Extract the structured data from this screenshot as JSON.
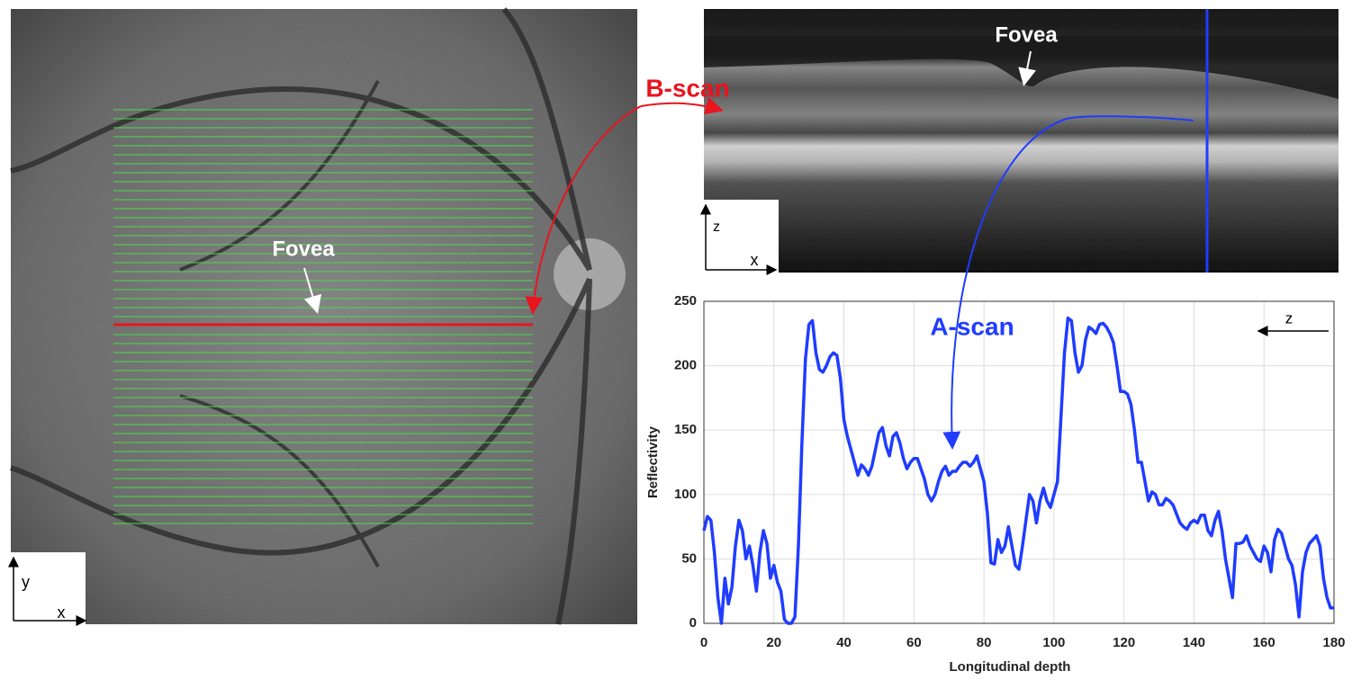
{
  "fundus": {
    "fovea_label": "Fovea",
    "axis_x": "x",
    "axis_y": "y"
  },
  "bscan": {
    "title": "B-scan",
    "fovea_label": "Fovea",
    "axis_x": "x",
    "axis_z": "z"
  },
  "chart_data": {
    "type": "line",
    "annotation": "A-scan",
    "direction_label": "z",
    "x_label": "Longitudinal depth",
    "y_label": "Reflectivity",
    "color": "#1f3cff",
    "grid": true,
    "xlim": [
      0,
      180
    ],
    "xticks": [
      0,
      20,
      40,
      60,
      80,
      100,
      120,
      140,
      160,
      180
    ],
    "ylim": [
      0,
      250
    ],
    "yticks": [
      0,
      50,
      100,
      150,
      200,
      250
    ],
    "x": [
      0,
      1,
      2,
      3,
      4,
      5,
      6,
      7,
      8,
      9,
      10,
      11,
      12,
      13,
      14,
      15,
      16,
      17,
      18,
      19,
      20,
      21,
      22,
      23,
      24,
      25,
      26,
      27,
      28,
      29,
      30,
      31,
      32,
      33,
      34,
      35,
      36,
      37,
      38,
      39,
      40,
      41,
      42,
      43,
      44,
      45,
      46,
      47,
      48,
      49,
      50,
      51,
      52,
      53,
      54,
      55,
      56,
      57,
      58,
      59,
      60,
      61,
      62,
      63,
      64,
      65,
      66,
      67,
      68,
      69,
      70,
      71,
      72,
      73,
      74,
      75,
      76,
      77,
      78,
      79,
      80,
      81,
      82,
      83,
      84,
      85,
      86,
      87,
      88,
      89,
      90,
      91,
      92,
      93,
      94,
      95,
      96,
      97,
      98,
      99,
      100,
      101,
      102,
      103,
      104,
      105,
      106,
      107,
      108,
      109,
      110,
      111,
      112,
      113,
      114,
      115,
      116,
      117,
      118,
      119,
      120,
      121,
      122,
      123,
      124,
      125,
      126,
      127,
      128,
      129,
      130,
      131,
      132,
      133,
      134,
      135,
      136,
      137,
      138,
      139,
      140,
      141,
      142,
      143,
      144,
      145,
      146,
      147,
      148,
      149,
      150,
      151,
      152,
      153,
      154,
      155,
      156,
      157,
      158,
      159,
      160,
      161,
      162,
      163,
      164,
      165,
      166,
      167,
      168,
      169,
      170,
      171,
      172,
      173,
      174,
      175,
      176,
      177,
      178,
      179,
      180
    ],
    "values": [
      72,
      83,
      80,
      55,
      20,
      0,
      35,
      15,
      28,
      60,
      80,
      72,
      50,
      60,
      45,
      25,
      55,
      72,
      62,
      35,
      45,
      32,
      25,
      3,
      0,
      0,
      5,
      60,
      140,
      205,
      232,
      235,
      210,
      197,
      195,
      200,
      207,
      210,
      208,
      190,
      158,
      145,
      135,
      125,
      115,
      123,
      120,
      115,
      122,
      135,
      148,
      152,
      138,
      130,
      145,
      148,
      140,
      128,
      120,
      125,
      128,
      128,
      120,
      112,
      100,
      95,
      100,
      110,
      118,
      122,
      115,
      118,
      118,
      122,
      125,
      125,
      122,
      125,
      130,
      120,
      110,
      85,
      47,
      46,
      65,
      55,
      60,
      75,
      60,
      45,
      42,
      60,
      80,
      100,
      95,
      78,
      95,
      105,
      95,
      90,
      100,
      110,
      160,
      210,
      237,
      235,
      210,
      195,
      200,
      220,
      230,
      228,
      225,
      232,
      233,
      230,
      225,
      218,
      200,
      180,
      180,
      178,
      170,
      150,
      125,
      125,
      110,
      95,
      102,
      100,
      92,
      92,
      97,
      95,
      92,
      85,
      78,
      75,
      73,
      78,
      80,
      78,
      84,
      84,
      72,
      68,
      80,
      87,
      72,
      50,
      35,
      20,
      62,
      62,
      63,
      68,
      60,
      55,
      50,
      48,
      60,
      55,
      40,
      65,
      73,
      70,
      60,
      50,
      45,
      30,
      5,
      40,
      55,
      62,
      65,
      68,
      60,
      35,
      20,
      12,
      12
    ]
  }
}
